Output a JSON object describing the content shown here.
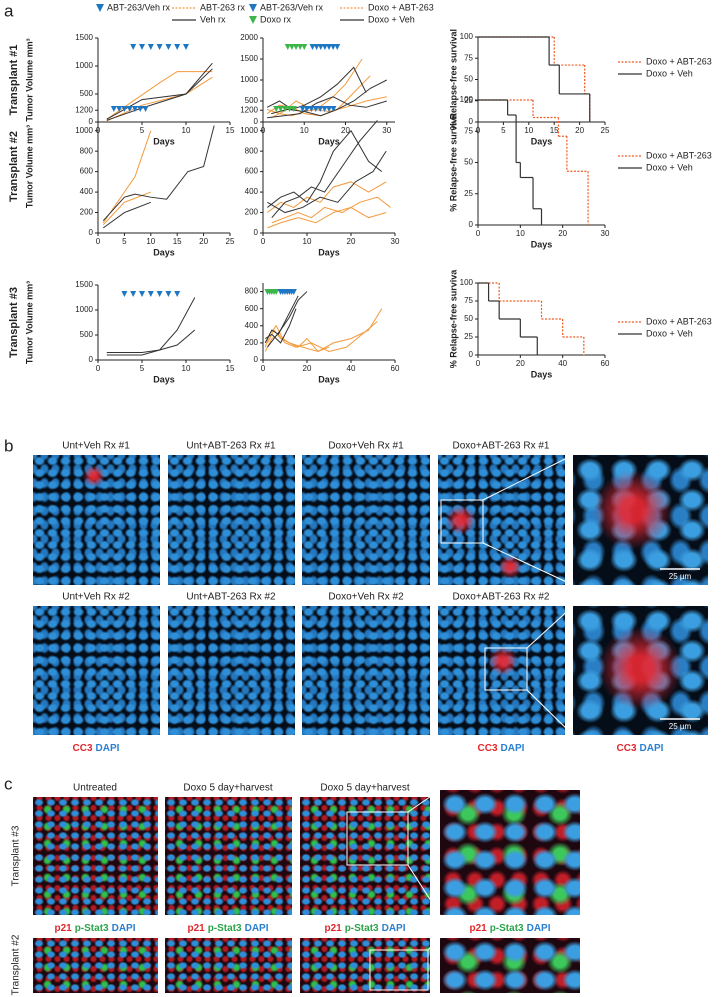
{
  "figure": {
    "panel_labels": [
      "a",
      "b",
      "c"
    ]
  },
  "chart_data": [
    {
      "type": "line",
      "title": "Transplant #1",
      "ylabel": "Tumor Volume mm³",
      "xlabel": "Days",
      "xlim": [
        0,
        15
      ],
      "xticks": [
        0,
        5,
        10,
        15
      ],
      "ylim": [
        0,
        1500
      ],
      "yticks": [
        0,
        500,
        1000,
        1500
      ],
      "markers": [
        {
          "name": "ABT-263/Veh rx",
          "color": "#1f77c4",
          "x": [
            4,
            5,
            6,
            7,
            8,
            9,
            10
          ]
        }
      ],
      "series": [
        {
          "name": "ABT-263 rx",
          "color": "#f39a3b",
          "lines": [
            {
              "x": [
                1,
                7,
                9,
                13
              ],
              "values": [
                50,
                700,
                900,
                900
              ]
            },
            {
              "x": [
                1,
                5,
                10,
                13
              ],
              "values": [
                20,
                300,
                500,
                800
              ]
            }
          ]
        },
        {
          "name": "Veh rx",
          "color": "#333333",
          "lines": [
            {
              "x": [
                1,
                5,
                10,
                13
              ],
              "values": [
                50,
                400,
                500,
                1050
              ]
            },
            {
              "x": [
                1,
                5,
                10,
                13
              ],
              "values": [
                30,
                250,
                500,
                950
              ]
            }
          ]
        }
      ]
    },
    {
      "type": "line",
      "xlabel": "Days",
      "xlim": [
        0,
        32
      ],
      "xticks": [
        0,
        10,
        20,
        30
      ],
      "ylim": [
        0,
        2000
      ],
      "yticks": [
        0,
        500,
        1000,
        1500,
        2000
      ],
      "markers": [
        {
          "name": "ABT-263/Veh rx",
          "color": "#1f77c4",
          "x": [
            12,
            13,
            14,
            15,
            16,
            17,
            18
          ]
        },
        {
          "name": "Doxo rx",
          "color": "#3cb54a",
          "x": [
            6,
            7,
            8,
            9,
            10
          ]
        }
      ],
      "series": [
        {
          "name": "Doxo + ABT-263",
          "color": "#f39a3b",
          "lines": [
            {
              "x": [
                1,
                4,
                7,
                10,
                13,
                17,
                20,
                24
              ],
              "values": [
                300,
                200,
                150,
                250,
                300,
                600,
                900,
                1500
              ]
            },
            {
              "x": [
                1,
                4,
                7,
                10,
                14,
                18,
                22,
                26
              ],
              "values": [
                200,
                400,
                350,
                200,
                150,
                300,
                700,
                1100
              ]
            },
            {
              "x": [
                2,
                5,
                8,
                12,
                16,
                20,
                25,
                30
              ],
              "values": [
                100,
                250,
                500,
                300,
                250,
                350,
                500,
                600
              ]
            }
          ]
        },
        {
          "name": "Doxo + Veh",
          "color": "#333333",
          "lines": [
            {
              "x": [
                1,
                4,
                7,
                10,
                14,
                18,
                22,
                25
              ],
              "values": [
                350,
                500,
                300,
                400,
                600,
                900,
                1300,
                700
              ]
            },
            {
              "x": [
                2,
                6,
                10,
                14,
                18,
                22,
                26,
                30
              ],
              "values": [
                200,
                300,
                250,
                150,
                300,
                500,
                800,
                1000
              ]
            },
            {
              "x": [
                1,
                5,
                9,
                13,
                17,
                21,
                25,
                30
              ],
              "values": [
                100,
                150,
                200,
                450,
                600,
                400,
                350,
                500
              ]
            }
          ]
        }
      ]
    },
    {
      "type": "step",
      "ylabel": "% Relapse-free survival",
      "xlabel": "Days",
      "xlim": [
        0,
        25
      ],
      "xticks": [
        0,
        5,
        10,
        15,
        20,
        25
      ],
      "ylim": [
        0,
        100
      ],
      "yticks": [
        0,
        25,
        50,
        75,
        100
      ],
      "series": [
        {
          "name": "Doxo + ABT-263",
          "color": "#f15a22",
          "dash": true,
          "x": [
            0,
            15,
            21,
            22
          ],
          "values": [
            100,
            67,
            33,
            0
          ]
        },
        {
          "name": "Doxo + Veh",
          "color": "#333333",
          "x": [
            0,
            14,
            16,
            22
          ],
          "values": [
            100,
            67,
            33,
            0
          ]
        }
      ]
    },
    {
      "type": "line",
      "title": "Transplant #2",
      "ylabel": "Tumor Volume mm³",
      "xlabel": "Days",
      "xlim": [
        0,
        25
      ],
      "xticks": [
        0,
        5,
        10,
        15,
        20,
        25
      ],
      "ylim": [
        0,
        1300
      ],
      "yticks": [
        0,
        200,
        400,
        600,
        800,
        1000,
        1200
      ],
      "markers": [
        {
          "color": "#1f77c4",
          "x": [
            3,
            4,
            5,
            6,
            7,
            8,
            9
          ]
        }
      ],
      "series": [
        {
          "color": "#f39a3b",
          "lines": [
            {
              "x": [
                1,
                7,
                10
              ],
              "values": [
                100,
                550,
                1000
              ]
            },
            {
              "x": [
                1,
                5,
                10
              ],
              "values": [
                80,
                300,
                400
              ]
            }
          ]
        },
        {
          "color": "#333333",
          "lines": [
            {
              "x": [
                1,
                5,
                7,
                10,
                13,
                17,
                20,
                22
              ],
              "values": [
                120,
                350,
                380,
                350,
                330,
                600,
                650,
                1050
              ]
            },
            {
              "x": [
                1,
                5,
                10
              ],
              "values": [
                50,
                200,
                300
              ]
            }
          ]
        }
      ]
    },
    {
      "type": "line",
      "xlabel": "Days",
      "xlim": [
        0,
        30
      ],
      "xticks": [
        0,
        10,
        20,
        30
      ],
      "ylim": [
        0,
        1300
      ],
      "yticks": [
        0,
        200,
        400,
        600,
        800,
        1000,
        1200
      ],
      "markers": [
        {
          "color": "#3cb54a",
          "x": [
            3,
            4,
            5,
            6,
            7
          ]
        },
        {
          "color": "#1f77c4",
          "x": [
            9,
            10,
            11,
            12,
            13,
            14,
            15,
            16
          ]
        }
      ],
      "series": [
        {
          "color": "#f39a3b",
          "lines": [
            {
              "x": [
                1,
                4,
                7,
                10,
                13,
                16,
                20,
                24,
                28
              ],
              "values": [
                200,
                300,
                250,
                350,
                300,
                450,
                500,
                400,
                500
              ]
            },
            {
              "x": [
                2,
                5,
                8,
                11,
                14,
                18,
                22,
                26,
                29
              ],
              "values": [
                100,
                150,
                200,
                150,
                250,
                200,
                300,
                350,
                250
              ]
            },
            {
              "x": [
                1,
                4,
                8,
                12,
                16,
                20,
                24,
                28
              ],
              "values": [
                50,
                100,
                150,
                100,
                200,
                250,
                150,
                200
              ]
            }
          ]
        },
        {
          "color": "#333333",
          "lines": [
            {
              "x": [
                1,
                4,
                7,
                10,
                13,
                16,
                20,
                24,
                27
              ],
              "values": [
                250,
                350,
                400,
                300,
                500,
                800,
                1000,
                700,
                600
              ]
            },
            {
              "x": [
                2,
                5,
                8,
                11,
                14,
                18,
                22,
                26
              ],
              "values": [
                150,
                300,
                350,
                450,
                400,
                650,
                900,
                1100
              ]
            },
            {
              "x": [
                1,
                5,
                9,
                13,
                17,
                21,
                25,
                28
              ],
              "values": [
                300,
                200,
                250,
                350,
                300,
                500,
                600,
                800
              ]
            }
          ]
        }
      ]
    },
    {
      "type": "step",
      "ylabel": "% Relapse-free surviva",
      "xlabel": "Days",
      "xlim": [
        0,
        30
      ],
      "xticks": [
        0,
        10,
        20,
        30
      ],
      "ylim": [
        0,
        100
      ],
      "yticks": [
        0,
        25,
        50,
        75,
        100
      ],
      "series": [
        {
          "name": "Doxo + ABT-263",
          "color": "#f15a22",
          "dash": true,
          "x": [
            0,
            13,
            19,
            21,
            26
          ],
          "values": [
            100,
            86,
            71,
            43,
            0
          ]
        },
        {
          "name": "Doxo + Veh",
          "color": "#333333",
          "x": [
            0,
            7,
            9,
            10,
            13,
            15
          ],
          "values": [
            100,
            88,
            50,
            38,
            13,
            0
          ]
        }
      ]
    },
    {
      "type": "line",
      "title": "Transplant #3",
      "ylabel": "Tumor Volume mm³",
      "xlabel": "Days",
      "xlim": [
        0,
        15
      ],
      "xticks": [
        0,
        5,
        10,
        15
      ],
      "ylim": [
        0,
        1500
      ],
      "yticks": [
        0,
        500,
        1000,
        1500
      ],
      "markers": [
        {
          "color": "#1f77c4",
          "x": [
            3,
            4,
            5,
            6,
            7,
            8,
            9
          ]
        }
      ],
      "series": [
        {
          "color": "#333333",
          "lines": [
            {
              "x": [
                1,
                5,
                7,
                9,
                11
              ],
              "values": [
                150,
                150,
                200,
                600,
                1250
              ]
            },
            {
              "x": [
                1,
                5,
                9,
                11
              ],
              "values": [
                100,
                100,
                300,
                600
              ]
            }
          ]
        }
      ]
    },
    {
      "type": "line",
      "xlabel": "Days",
      "xlim": [
        0,
        60
      ],
      "xticks": [
        0,
        20,
        40,
        60
      ],
      "ylim": [
        0,
        900
      ],
      "yticks": [
        0,
        200,
        400,
        600,
        800
      ],
      "markers": [
        {
          "color": "#3cb54a",
          "x": [
            2,
            3,
            4,
            5,
            6
          ]
        },
        {
          "color": "#1f77c4",
          "x": [
            8,
            9,
            10,
            11,
            12,
            13,
            14
          ]
        }
      ],
      "series": [
        {
          "color": "#f39a3b",
          "lines": [
            {
              "x": [
                1,
                3,
                6,
                9,
                12,
                16,
                20,
                25,
                30
              ],
              "values": [
                150,
                300,
                400,
                250,
                200,
                150,
                250,
                100,
                150
              ]
            },
            {
              "x": [
                2,
                5,
                8,
                12,
                18,
                25,
                32,
                40,
                48,
                54
              ],
              "values": [
                200,
                350,
                250,
                200,
                150,
                100,
                200,
                250,
                350,
                600
              ]
            },
            {
              "x": [
                1,
                4,
                7,
                10,
                15,
                22,
                30,
                38,
                45,
                52
              ],
              "values": [
                100,
                250,
                300,
                200,
                150,
                200,
                100,
                150,
                300,
                450
              ]
            }
          ]
        },
        {
          "color": "#333333",
          "lines": [
            {
              "x": [
                1,
                4,
                7,
                10,
                13,
                16
              ],
              "values": [
                200,
                350,
                300,
                450,
                600,
                750
              ]
            },
            {
              "x": [
                2,
                5,
                8,
                12,
                16,
                20
              ],
              "values": [
                150,
                250,
                350,
                500,
                700,
                800
              ]
            },
            {
              "x": [
                1,
                4,
                8,
                12,
                15
              ],
              "values": [
                250,
                300,
                200,
                400,
                600
              ]
            }
          ]
        }
      ]
    },
    {
      "type": "step",
      "ylabel": "% Relapse-free surviva",
      "xlabel": "Days",
      "xlim": [
        0,
        60
      ],
      "xticks": [
        0,
        20,
        40,
        60
      ],
      "ylim": [
        0,
        100
      ],
      "yticks": [
        0,
        25,
        50,
        75,
        100
      ],
      "series": [
        {
          "name": "Doxo + ABT-263",
          "color": "#f15a22",
          "dash": true,
          "x": [
            0,
            10,
            30,
            40,
            50
          ],
          "values": [
            100,
            75,
            50,
            25,
            0
          ]
        },
        {
          "name": "Doxo + Veh",
          "color": "#333333",
          "x": [
            0,
            5,
            10,
            20,
            28
          ],
          "values": [
            100,
            75,
            50,
            25,
            0
          ]
        }
      ]
    }
  ],
  "panel_b": {
    "tiles": [
      "Unt+Veh Rx #1",
      "Unt+ABT-263 Rx #1",
      "Doxo+Veh Rx #1",
      "Doxo+ABT-263 Rx #1",
      "Unt+Veh Rx #2",
      "Unt+ABT-263 Rx #2",
      "Doxo+Veh Rx #2",
      "Doxo+ABT-263 Rx #2"
    ],
    "stain": [
      {
        "text": "CC3",
        "color": "#e3262b"
      },
      {
        "text": "DAPI",
        "color": "#2a7fd0"
      }
    ],
    "scale_bar": "25 µm"
  },
  "panel_c": {
    "columns": [
      "Untreated",
      "Doxo 5 day+harvest",
      "Doxo 5 day+harvest"
    ],
    "rows": [
      "Transplant #3",
      "Transplant #2"
    ],
    "stain": [
      {
        "text": "p21",
        "color": "#e3262b"
      },
      {
        "text": "p-Stat3",
        "color": "#2ca54a"
      },
      {
        "text": "DAPI",
        "color": "#2a7fd0"
      }
    ]
  }
}
